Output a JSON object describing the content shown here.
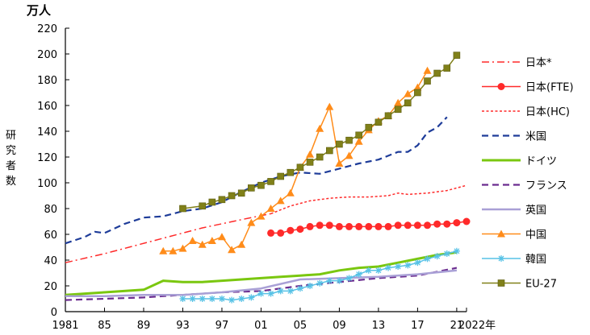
{
  "chart_data": {
    "type": "line",
    "unit_label": "万人",
    "ylabel": "研究者数",
    "xlabel_suffix": "年",
    "ylim": [
      0,
      220
    ],
    "y_ticks": [
      0,
      20,
      40,
      60,
      80,
      100,
      120,
      140,
      160,
      180,
      200,
      220
    ],
    "xlim": [
      1981,
      2022
    ],
    "x_ticks": [
      {
        "year": 1981,
        "label": "1981"
      },
      {
        "year": 1985,
        "label": "85"
      },
      {
        "year": 1989,
        "label": "89"
      },
      {
        "year": 1993,
        "label": "93"
      },
      {
        "year": 1997,
        "label": "97"
      },
      {
        "year": 2001,
        "label": "01"
      },
      {
        "year": 2005,
        "label": "05"
      },
      {
        "year": 2009,
        "label": "09"
      },
      {
        "year": 2013,
        "label": "13"
      },
      {
        "year": 2017,
        "label": "17"
      },
      {
        "year": 2021,
        "label": "21"
      },
      {
        "year": 2022,
        "label": "2022"
      }
    ],
    "grid": false,
    "legend_position": "right",
    "series": [
      {
        "name": "日本*",
        "color": "#ff2a2a",
        "style": "dashdot",
        "marker": "none",
        "x": [
          1981,
          1985,
          1990,
          1995,
          2000,
          2002
        ],
        "y": [
          38,
          45,
          55,
          65,
          73,
          76
        ]
      },
      {
        "name": "日本(FTE)",
        "color": "#ff2a2a",
        "style": "solid",
        "marker": "circle",
        "x": [
          2002,
          2003,
          2004,
          2005,
          2006,
          2007,
          2008,
          2009,
          2010,
          2011,
          2012,
          2013,
          2014,
          2015,
          2016,
          2017,
          2018,
          2019,
          2020,
          2021,
          2022
        ],
        "y": [
          61,
          61,
          63,
          64,
          66,
          67,
          67,
          66,
          66,
          66,
          66,
          66,
          66,
          67,
          67,
          67,
          67,
          68,
          68,
          69,
          70
        ]
      },
      {
        "name": "日本(HC)",
        "color": "#ff2a2a",
        "style": "dotted",
        "marker": "none",
        "x": [
          2002,
          2004,
          2006,
          2008,
          2010,
          2012,
          2014,
          2015,
          2016,
          2018,
          2020,
          2022
        ],
        "y": [
          76,
          82,
          86,
          88,
          89,
          89,
          90,
          92,
          91,
          92,
          94,
          98
        ]
      },
      {
        "name": "米国",
        "color": "#1e3c99",
        "style": "dashed",
        "marker": "none",
        "x": [
          1981,
          1983,
          1984,
          1985,
          1987,
          1989,
          1991,
          1993,
          1995,
          1997,
          1999,
          2001,
          2003,
          2005,
          2007,
          2009,
          2011,
          2013,
          2015,
          2016,
          2017,
          2018,
          2019,
          2020
        ],
        "y": [
          53,
          58,
          62,
          61,
          68,
          73,
          74,
          78,
          80,
          85,
          93,
          100,
          105,
          108,
          107,
          111,
          115,
          118,
          124,
          124,
          129,
          139,
          143,
          151
        ]
      },
      {
        "name": "ドイツ",
        "color": "#7ac70f",
        "style": "solid",
        "marker": "none",
        "x": [
          1981,
          1983,
          1985,
          1987,
          1989,
          1991,
          1993,
          1995,
          1997,
          1999,
          2001,
          2003,
          2005,
          2007,
          2009,
          2011,
          2013,
          2015,
          2017,
          2019,
          2021
        ],
        "y": [
          13,
          14,
          15,
          16,
          17,
          24,
          23,
          23,
          24,
          25,
          26,
          27,
          28,
          29,
          32,
          34,
          35,
          38,
          41,
          44,
          46
        ]
      },
      {
        "name": "フランス",
        "color": "#6b2c8f",
        "style": "dashed",
        "marker": "none",
        "x": [
          1981,
          1985,
          1989,
          1993,
          1997,
          2001,
          2005,
          2009,
          2013,
          2017,
          2021
        ],
        "y": [
          9,
          10,
          11,
          13,
          15,
          16,
          20,
          23,
          26,
          28,
          34
        ]
      },
      {
        "name": "英国",
        "color": "#a9a0d6",
        "style": "solid",
        "marker": "none",
        "x": [
          1981,
          1985,
          1989,
          1993,
          1997,
          2001,
          2005,
          2009,
          2013,
          2017,
          2021
        ],
        "y": [
          12,
          12,
          13,
          13,
          15,
          18,
          25,
          26,
          27,
          29,
          32
        ]
      },
      {
        "name": "中国",
        "color": "#ff8c1a",
        "style": "solid",
        "marker": "triangle",
        "x": [
          1991,
          1992,
          1993,
          1994,
          1995,
          1996,
          1997,
          1998,
          1999,
          2000,
          2001,
          2002,
          2003,
          2004,
          2005,
          2006,
          2007,
          2008,
          2009,
          2010,
          2011,
          2012,
          2013,
          2014,
          2015,
          2016,
          2017,
          2018
        ],
        "y": [
          47,
          47,
          49,
          55,
          52,
          55,
          58,
          48,
          52,
          69,
          74,
          80,
          86,
          92,
          112,
          122,
          142,
          159,
          115,
          121,
          132,
          141,
          148,
          152,
          162,
          169,
          174,
          187
        ]
      },
      {
        "name": "韓国",
        "color": "#57c2e6",
        "style": "solid",
        "marker": "star",
        "x": [
          1993,
          1994,
          1995,
          1996,
          1997,
          1998,
          1999,
          2000,
          2001,
          2002,
          2003,
          2004,
          2005,
          2006,
          2007,
          2008,
          2009,
          2010,
          2011,
          2012,
          2013,
          2014,
          2015,
          2016,
          2017,
          2018,
          2019,
          2020,
          2021
        ],
        "y": [
          10,
          10,
          10,
          10,
          10,
          9,
          10,
          11,
          14,
          14,
          16,
          16,
          18,
          20,
          22,
          24,
          24,
          26,
          29,
          32,
          32,
          34,
          35,
          36,
          38,
          41,
          43,
          45,
          47
        ]
      },
      {
        "name": "EU-27",
        "color": "#808019",
        "style": "solid",
        "marker": "square",
        "x": [
          1993,
          1995,
          1996,
          1997,
          1998,
          1999,
          2000,
          2001,
          2002,
          2003,
          2004,
          2005,
          2006,
          2007,
          2008,
          2009,
          2010,
          2011,
          2012,
          2013,
          2014,
          2015,
          2016,
          2017,
          2018,
          2019,
          2020,
          2021
        ],
        "y": [
          80,
          82,
          85,
          87,
          90,
          92,
          96,
          98,
          101,
          105,
          108,
          112,
          116,
          120,
          125,
          130,
          133,
          137,
          143,
          147,
          152,
          157,
          162,
          170,
          179,
          185,
          189,
          199
        ]
      }
    ]
  }
}
